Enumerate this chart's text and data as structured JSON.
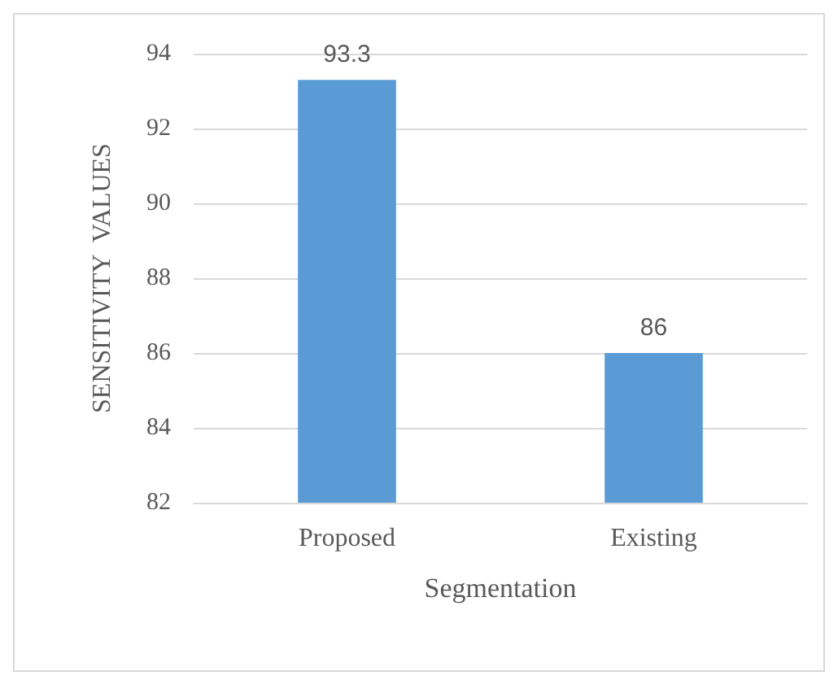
{
  "chart_data": {
    "type": "bar",
    "xlabel": "Segmentation",
    "ylabel": "SENSITIVITY  VALUES",
    "categories": [
      "Proposed",
      "Existing"
    ],
    "values": [
      93.3,
      86
    ],
    "color": "#5b9bd5",
    "ylim": [
      82,
      94
    ],
    "yticks": [
      82,
      84,
      86,
      88,
      90,
      92,
      94
    ],
    "grid": "y",
    "data_labels": true
  }
}
